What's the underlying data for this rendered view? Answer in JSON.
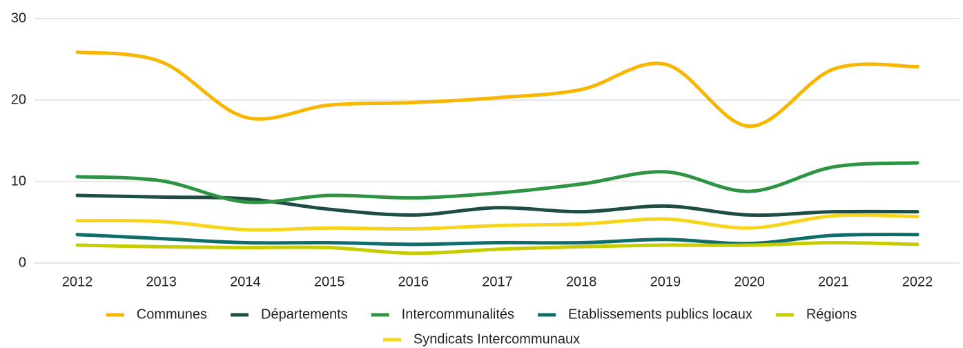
{
  "chart_data": {
    "type": "line",
    "categories": [
      "2012",
      "2013",
      "2014",
      "2015",
      "2016",
      "2017",
      "2018",
      "2019",
      "2020",
      "2021",
      "2022"
    ],
    "series": [
      {
        "name": "Communes",
        "color": "#f9b600",
        "values": [
          25.9,
          24.7,
          17.9,
          19.4,
          19.7,
          20.3,
          21.3,
          24.4,
          16.8,
          23.8,
          24.1
        ]
      },
      {
        "name": "Départements",
        "color": "#1e4d45",
        "values": [
          8.3,
          8.1,
          7.9,
          6.6,
          5.9,
          6.8,
          6.3,
          7.0,
          5.9,
          6.3,
          6.3
        ]
      },
      {
        "name": "Intercommunalités",
        "color": "#2e9444",
        "values": [
          10.6,
          10.1,
          7.5,
          8.3,
          8.0,
          8.6,
          9.7,
          11.2,
          8.8,
          11.8,
          12.3
        ]
      },
      {
        "name": "Etablissements publics locaux",
        "color": "#0f6e6b",
        "values": [
          3.5,
          3.0,
          2.5,
          2.5,
          2.3,
          2.5,
          2.5,
          2.9,
          2.4,
          3.4,
          3.5
        ]
      },
      {
        "name": "Régions",
        "color": "#c7cc00",
        "values": [
          2.2,
          2.0,
          1.9,
          1.9,
          1.2,
          1.7,
          2.0,
          2.2,
          2.2,
          2.5,
          2.3
        ]
      },
      {
        "name": "Syndicats Intercommunaux",
        "color": "#f7d51c",
        "values": [
          5.2,
          5.1,
          4.1,
          4.3,
          4.2,
          4.6,
          4.8,
          5.4,
          4.3,
          5.8,
          5.7
        ]
      }
    ],
    "ylim": [
      0,
      30
    ],
    "yticks": [
      0,
      10,
      20,
      30
    ],
    "grid": true,
    "smooth": true,
    "legend": "bottom"
  }
}
